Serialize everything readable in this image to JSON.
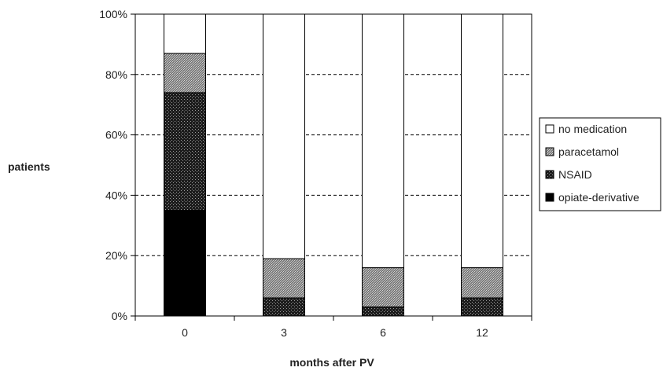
{
  "chart_data": {
    "type": "bar",
    "stacked": true,
    "ylabel": "patients",
    "xlabel": "months after PV",
    "categories": [
      "0",
      "3",
      "6",
      "12"
    ],
    "y_ticks": [
      "0%",
      "20%",
      "40%",
      "60%",
      "80%",
      "100%"
    ],
    "ylim": [
      0,
      100
    ],
    "y_unit": "%",
    "grid": "horizontal-dashed",
    "legend_position": "right",
    "series": [
      {
        "name": "opiate-derivative",
        "values": [
          35,
          0,
          0,
          0
        ],
        "color": "#000000",
        "fill": "solid"
      },
      {
        "name": "NSAID",
        "values": [
          39,
          6,
          3,
          6
        ],
        "color": "#1a1a1a",
        "fill": "dense-dots"
      },
      {
        "name": "paracetamol",
        "values": [
          13,
          13,
          13,
          10
        ],
        "color": "#8c8c8c",
        "fill": "grey-dots"
      },
      {
        "name": "no medication",
        "values": [
          13,
          81,
          84,
          84
        ],
        "color": "#ffffff",
        "fill": "white"
      }
    ]
  }
}
